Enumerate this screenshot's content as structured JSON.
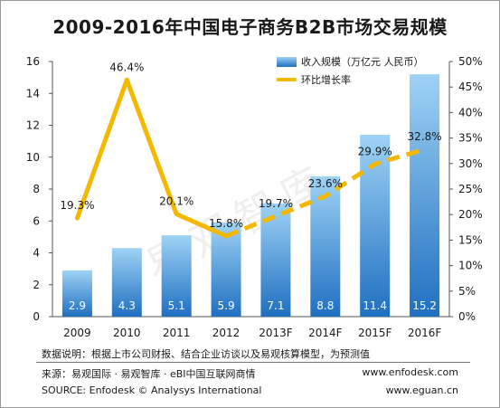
{
  "title": "2009-2016年中国电子商务B2B市场交易规模",
  "watermark": "易观智库",
  "footnote": "数据说明：根据上市公司财报、结合企业访谈以及易观核算模型，为预测值",
  "source_cn": "来源：易观国际 · 易观智库 · eBI中国互联网商情",
  "source_en": "SOURCE: Enfodesk © Analysys International",
  "site1": "www.enfodesk.com",
  "site2": "www.eguan.cn",
  "legend": {
    "bar_label": "收入规模（万亿元 人民币）",
    "line_label": "环比增长率"
  },
  "colors": {
    "bar_top": "#9ed3f5",
    "bar_bottom": "#1f6fc1",
    "line": "#f5b800",
    "axis": "#555555"
  },
  "chart_data": {
    "type": "bar",
    "categories": [
      "2009",
      "2010",
      "2011",
      "2012",
      "2013F",
      "2014F",
      "2015F",
      "2016F"
    ],
    "series": [
      {
        "name": "收入规模（万亿元 人民币）",
        "type": "bar",
        "axis": "left",
        "values": [
          2.9,
          4.3,
          5.1,
          5.9,
          7.1,
          8.8,
          11.4,
          15.2
        ],
        "labels": [
          "2.9",
          "4.3",
          "5.1",
          "5.9",
          "7.1",
          "8.8",
          "11.4",
          "15.2"
        ]
      },
      {
        "name": "环比增长率",
        "type": "line",
        "axis": "right",
        "values": [
          19.3,
          46.4,
          20.1,
          15.8,
          19.7,
          23.6,
          29.9,
          32.8
        ],
        "labels": [
          "19.3%",
          "46.4%",
          "20.1%",
          "15.8%",
          "19.7%",
          "23.6%",
          "29.9%",
          "32.8%"
        ],
        "dashed_from_index": 3
      }
    ],
    "y_left": {
      "min": 0,
      "max": 16,
      "ticks": [
        0,
        2,
        4,
        6,
        8,
        10,
        12,
        14,
        16
      ]
    },
    "y_right": {
      "min": 0,
      "max": 50,
      "ticks": [
        "0%",
        "5%",
        "10%",
        "15%",
        "20%",
        "25%",
        "30%",
        "35%",
        "40%",
        "45%",
        "50%"
      ]
    },
    "legend_position": "top-right",
    "grid": false
  }
}
